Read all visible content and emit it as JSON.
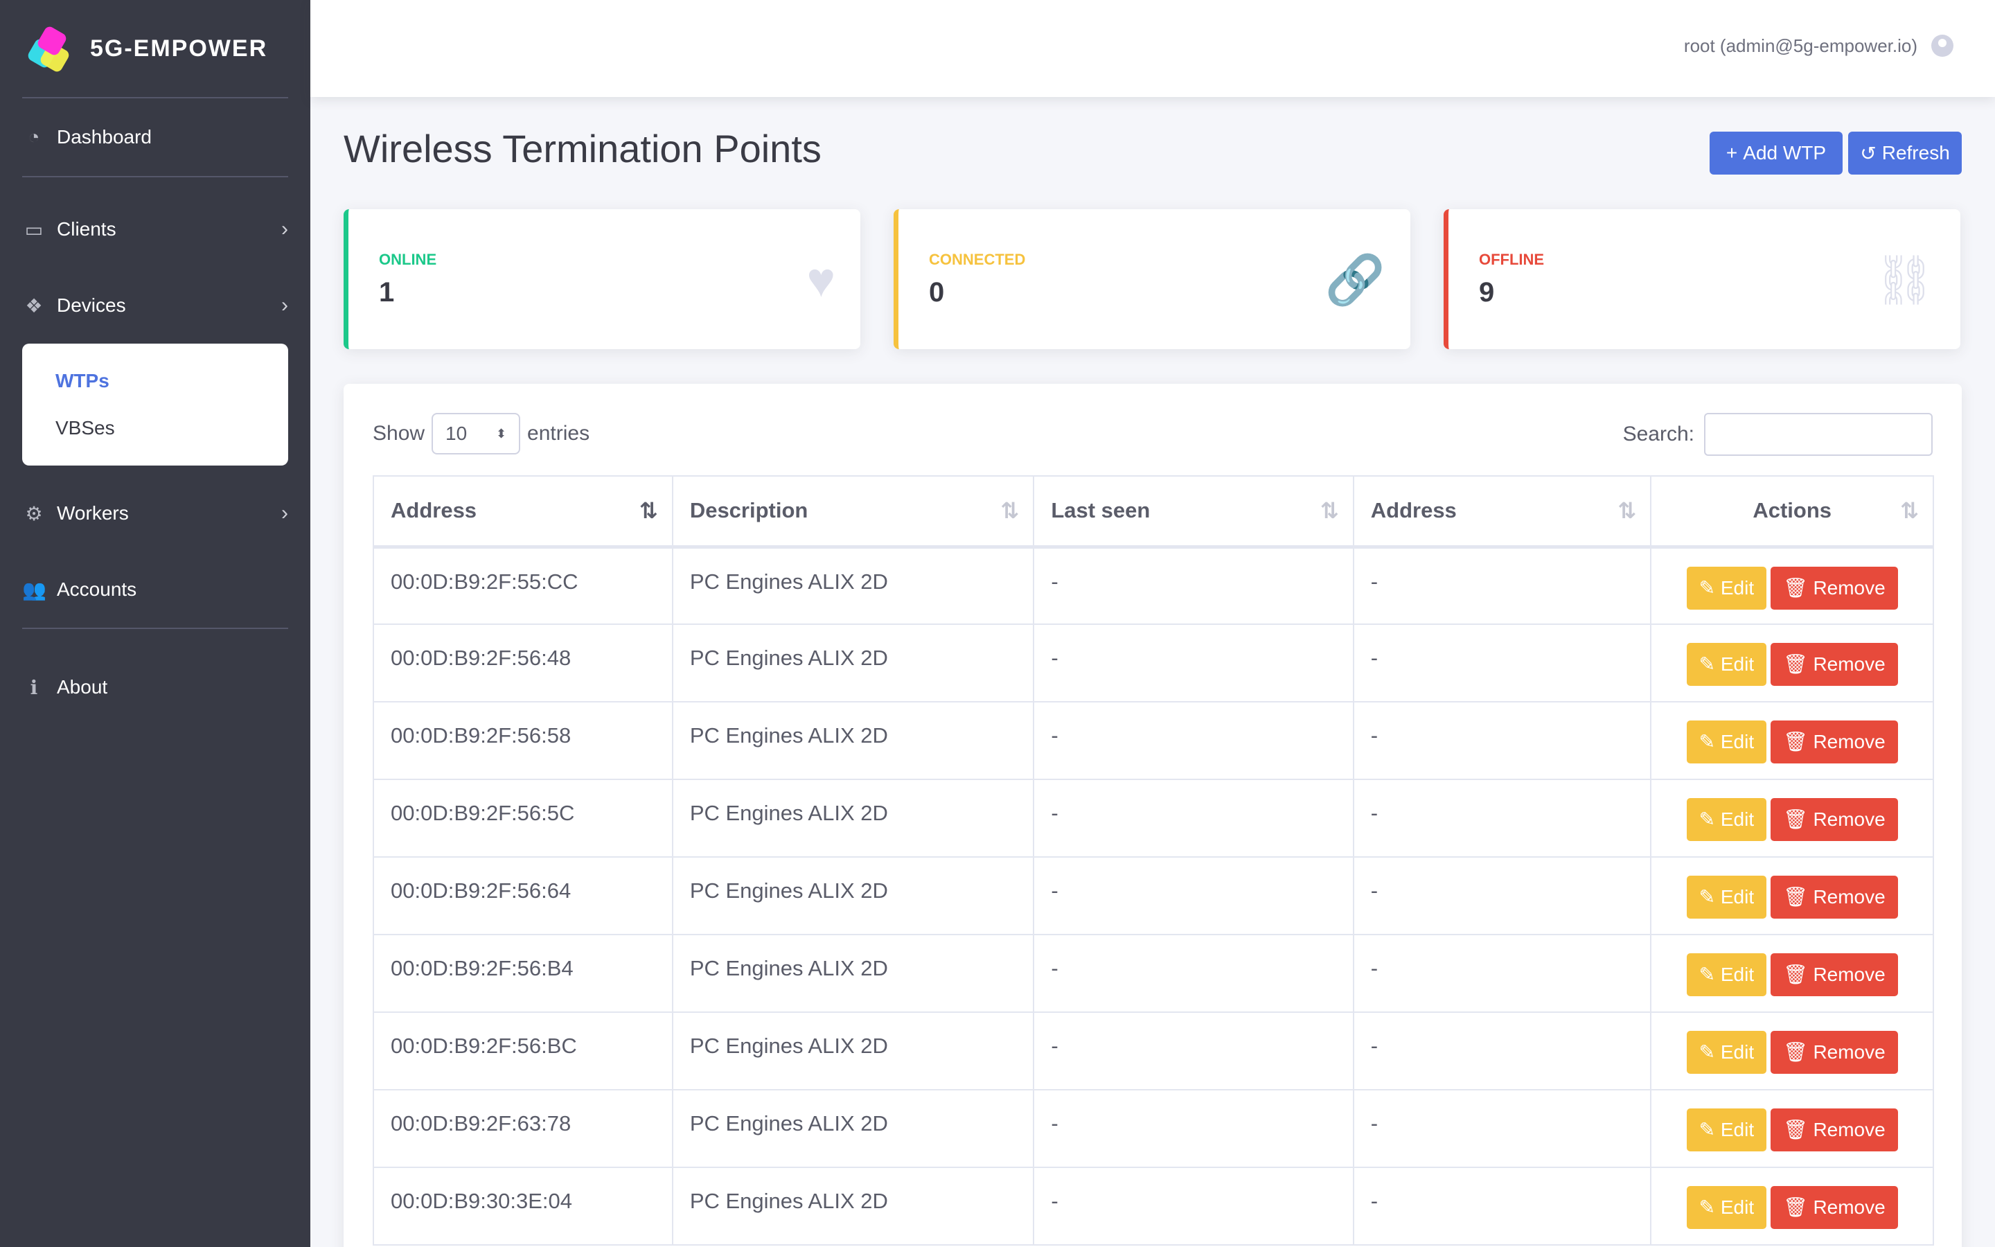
{
  "brand": {
    "name": "5G-EMPOWER"
  },
  "sidebar": {
    "items": [
      {
        "label": "Dashboard"
      },
      {
        "label": "Clients"
      },
      {
        "label": "Devices"
      },
      {
        "label": "Workers"
      },
      {
        "label": "Accounts"
      },
      {
        "label": "About"
      }
    ],
    "devices_submenu": [
      {
        "label": "WTPs"
      },
      {
        "label": "VBSes"
      }
    ]
  },
  "topbar": {
    "user": "root (admin@5g-empower.io)"
  },
  "page": {
    "title": "Wireless Termination Points"
  },
  "buttons": {
    "add": "Add WTP",
    "refresh": "Refresh"
  },
  "cards": [
    {
      "label": "ONLINE",
      "value": "1",
      "color": "#1cc88a",
      "icon": "heart-icon"
    },
    {
      "label": "CONNECTED",
      "value": "0",
      "color": "#f6c23e",
      "icon": "link-icon"
    },
    {
      "label": "OFFLINE",
      "value": "9",
      "color": "#e74a3b",
      "icon": "unlink-icon"
    }
  ],
  "table_controls": {
    "show_label": "Show",
    "entries_value": "10",
    "entries_label": "entries",
    "search_label": "Search:",
    "search_value": ""
  },
  "table": {
    "headers": [
      "Address",
      "Description",
      "Last seen",
      "Address",
      "Actions"
    ],
    "edit_label": "Edit",
    "remove_label": "Remove",
    "rows": [
      {
        "address": "00:0D:B9:2F:55:CC",
        "description": "PC Engines ALIX 2D",
        "last_seen": "-",
        "address2": "-"
      },
      {
        "address": "00:0D:B9:2F:56:48",
        "description": "PC Engines ALIX 2D",
        "last_seen": "-",
        "address2": "-"
      },
      {
        "address": "00:0D:B9:2F:56:58",
        "description": "PC Engines ALIX 2D",
        "last_seen": "-",
        "address2": "-"
      },
      {
        "address": "00:0D:B9:2F:56:5C",
        "description": "PC Engines ALIX 2D",
        "last_seen": "-",
        "address2": "-"
      },
      {
        "address": "00:0D:B9:2F:56:64",
        "description": "PC Engines ALIX 2D",
        "last_seen": "-",
        "address2": "-"
      },
      {
        "address": "00:0D:B9:2F:56:B4",
        "description": "PC Engines ALIX 2D",
        "last_seen": "-",
        "address2": "-"
      },
      {
        "address": "00:0D:B9:2F:56:BC",
        "description": "PC Engines ALIX 2D",
        "last_seen": "-",
        "address2": "-"
      },
      {
        "address": "00:0D:B9:2F:63:78",
        "description": "PC Engines ALIX 2D",
        "last_seen": "-",
        "address2": "-"
      },
      {
        "address": "00:0D:B9:30:3E:04",
        "description": "PC Engines ALIX 2D",
        "last_seen": "-",
        "address2": "-"
      }
    ]
  }
}
